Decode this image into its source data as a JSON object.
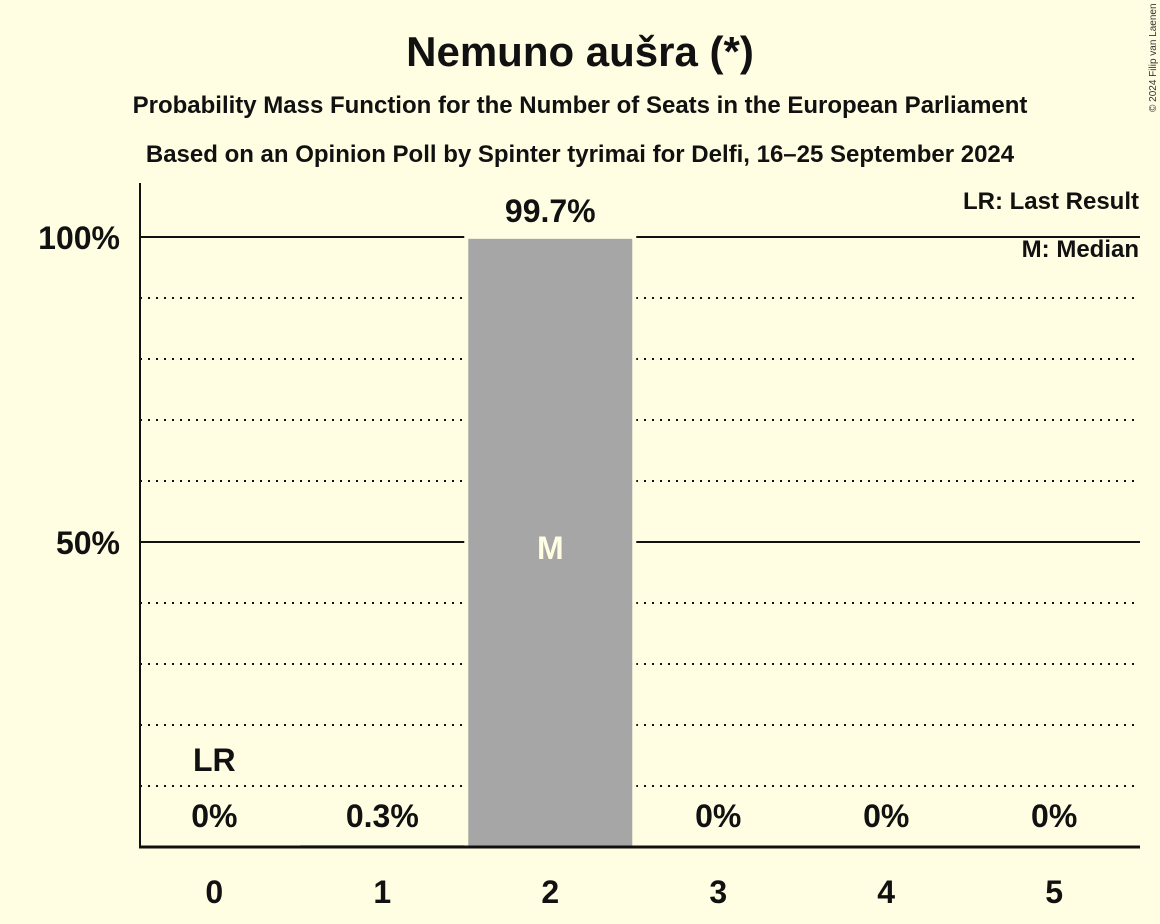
{
  "chart_data": {
    "type": "bar",
    "title": "Nemuno aušra (*)",
    "subtitle": "Probability Mass Function for the Number of Seats in the European Parliament",
    "subtitle2": "Based on an Opinion Poll by Spinter tyrimai for Delfi, 16–25 September 2024",
    "copyright": "© 2024 Filip van Laenen",
    "categories": [
      "0",
      "1",
      "2",
      "3",
      "4",
      "5"
    ],
    "values": [
      0,
      0.3,
      99.7,
      0,
      0,
      0
    ],
    "value_labels": [
      "0%",
      "0.3%",
      "99.7%",
      "0%",
      "0%",
      "0%"
    ],
    "ylim": [
      0,
      100
    ],
    "yticks": [
      {
        "value": 50,
        "label": "50%"
      },
      {
        "value": 100,
        "label": "100%"
      }
    ],
    "grid_minor_step": 10,
    "last_result_index": 0,
    "last_result_label": "LR",
    "median_index": 2,
    "median_label": "M",
    "legend": [
      "LR: Last Result",
      "M: Median"
    ],
    "legend_position": "top-right",
    "bar_color": "#A6A6A6",
    "background": "#FFFDE2"
  }
}
